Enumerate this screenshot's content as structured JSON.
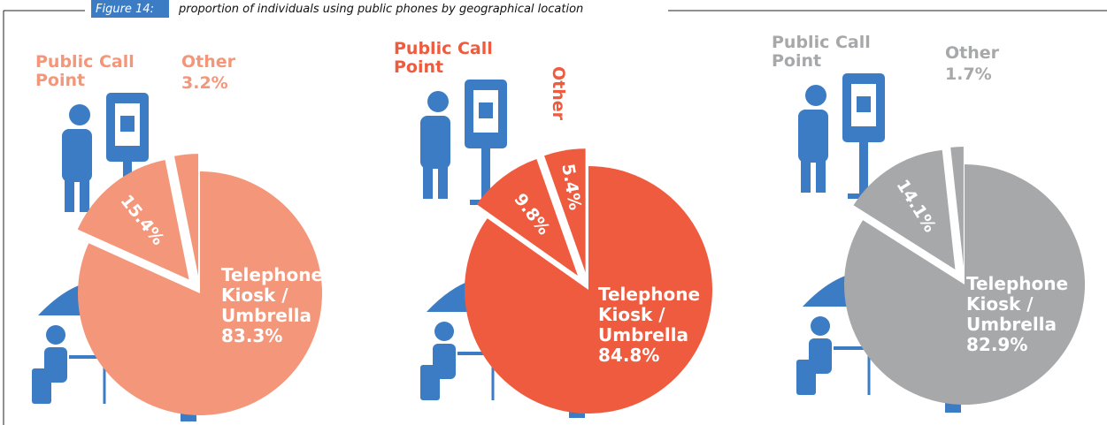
{
  "figure_label": "Figure 14:",
  "title": "proportion of individuals using public phones by geographical location",
  "chart_data": [
    {
      "type": "pie",
      "categories": [
        "Telephone Kiosk / Umbrella",
        "Public Call Point",
        "Other"
      ],
      "values": [
        83.3,
        15.4,
        3.2
      ],
      "value_labels": [
        "83.3%",
        "15.4%",
        "3.2%"
      ],
      "color": "#f4967a"
    },
    {
      "type": "pie",
      "categories": [
        "Telephone Kiosk / Umbrella",
        "Public Call Point",
        "Other"
      ],
      "values": [
        84.8,
        9.8,
        5.4
      ],
      "value_labels": [
        "84.8%",
        "9.8%",
        "5.4%"
      ],
      "color": "#ef5b3f"
    },
    {
      "type": "pie",
      "categories": [
        "Telephone Kiosk / Umbrella",
        "Public Call Point",
        "Other"
      ],
      "values": [
        82.9,
        14.1,
        1.7
      ],
      "value_labels": [
        "82.9%",
        "14.1%",
        "1.7%"
      ],
      "color": "#a7a8aa"
    }
  ]
}
